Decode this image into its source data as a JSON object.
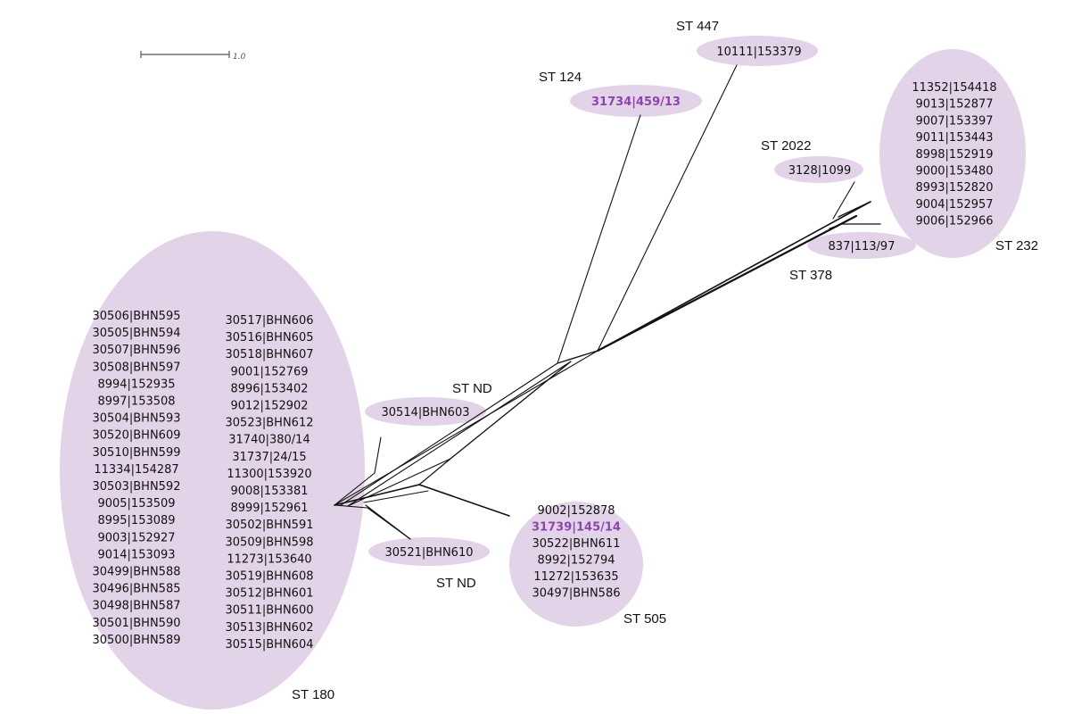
{
  "colors": {
    "cluster_fill": "#e2d3e8",
    "branch": "#111111",
    "highlight": "#8e44ad"
  },
  "scale_bar": {
    "label": "1.0"
  },
  "clusters": {
    "st180": {
      "st_label": "ST 180",
      "left": [
        "30506|BHN595",
        "30505|BHN594",
        "30507|BHN596",
        "30508|BHN597",
        "8994|152935",
        "8997|153508",
        "30504|BHN593",
        "30520|BHN609",
        "30510|BHN599",
        "11334|154287",
        "30503|BHN592",
        "9005|153509",
        "8995|153089",
        "9003|152927",
        "9014|153093",
        "30499|BHN588",
        "30496|BHN585",
        "30498|BHN587",
        "30501|BHN590",
        "30500|BHN589"
      ],
      "right": [
        "30517|BHN606",
        "30516|BHN605",
        "30518|BHN607",
        "9001|152769",
        "8996|153402",
        "9012|152902",
        "30523|BHN612",
        "31740|380/14",
        "31737|24/15",
        "11300|153920",
        "9008|153381",
        "8999|152961",
        "30502|BHN591",
        "30509|BHN598",
        "11273|153640",
        "30519|BHN608",
        "30512|BHN601",
        "30511|BHN600",
        "30513|BHN602",
        "30515|BHN604"
      ]
    },
    "st505": {
      "st_label": "ST 505",
      "isolates": [
        "9002|152878",
        "31739|145/14",
        "30522|BHN611",
        "8992|152794",
        "11272|153635",
        "30497|BHN586"
      ],
      "highlighted": "31739|145/14"
    },
    "st232": {
      "st_label": "ST 232",
      "isolates": [
        "11352|154418",
        "9013|152877",
        "9007|153397",
        "9011|153443",
        "8998|152919",
        "9000|153480",
        "8993|152820",
        "9004|152957",
        "9006|152966"
      ]
    },
    "st124": {
      "st_label": "ST 124",
      "isolate": "31734|459/13",
      "highlighted": true
    },
    "st447": {
      "st_label": "ST 447",
      "isolate": "10111|153379"
    },
    "st2022": {
      "st_label": "ST 2022",
      "isolate": "3128|1099"
    },
    "st378": {
      "st_label": "ST 378",
      "isolate": "837|113/97"
    },
    "nd_upper": {
      "st_label": "ST ND",
      "isolate": "30514|BHN603"
    },
    "nd_lower": {
      "st_label": "ST ND",
      "isolate": "30521|BHN610"
    }
  }
}
